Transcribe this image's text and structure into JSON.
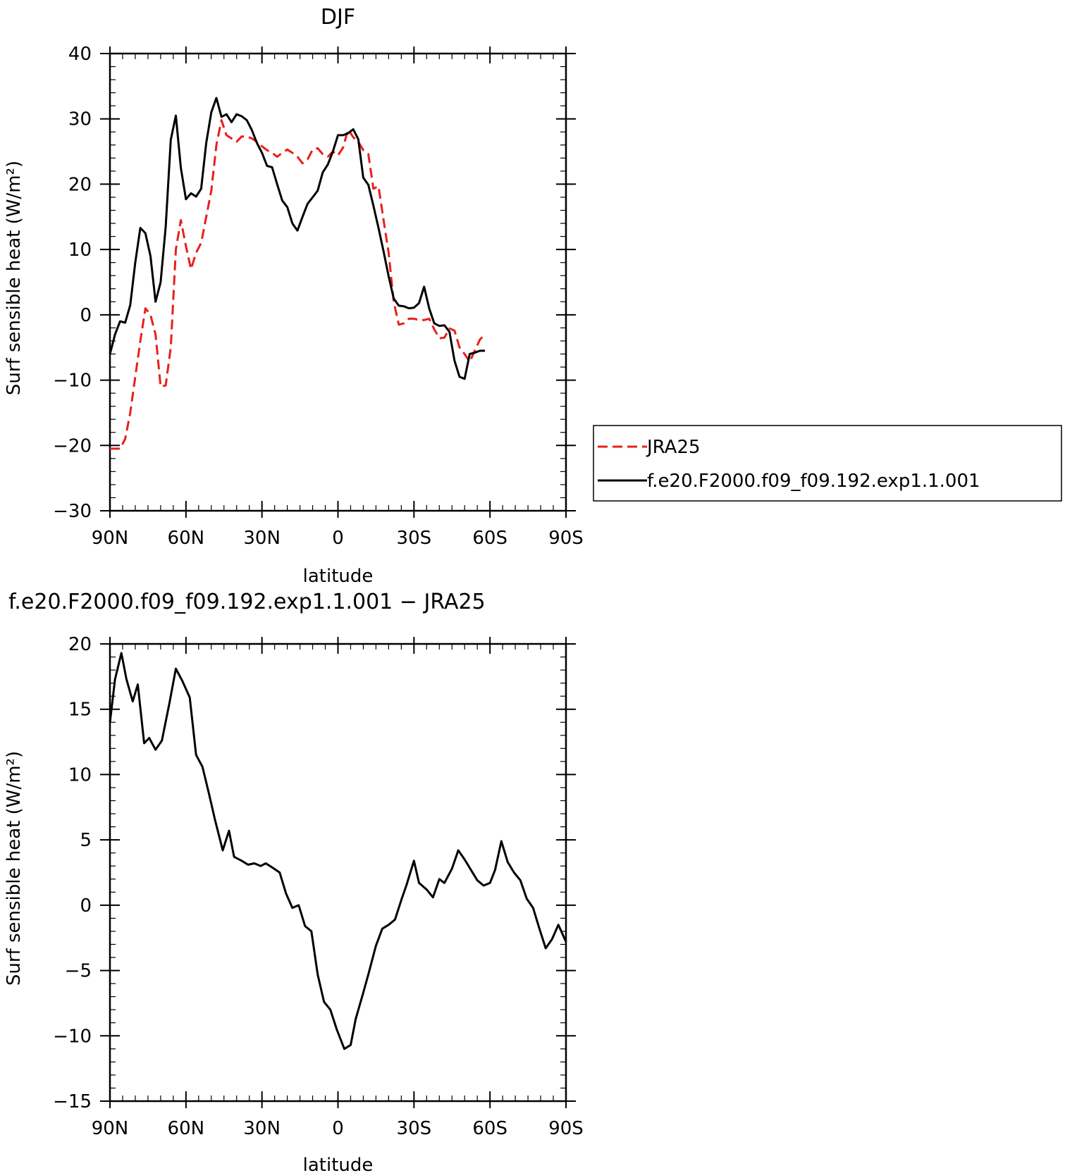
{
  "chart_data": [
    {
      "type": "line",
      "title": "DJF",
      "xlabel": "latitude",
      "ylabel": "Surf sensible heat (W/m²)",
      "xlim": [
        90,
        -90
      ],
      "ylim": [
        -30,
        40
      ],
      "xticks": [
        90,
        60,
        30,
        0,
        -30,
        -60,
        -90
      ],
      "xtick_labels": [
        "90N",
        "60N",
        "30N",
        "0",
        "30S",
        "60S",
        "90S"
      ],
      "yticks": [
        -30,
        -20,
        -10,
        0,
        10,
        20,
        30,
        40
      ],
      "ytick_labels": [
        "−30",
        "−20",
        "−10",
        "0",
        "10",
        "20",
        "30",
        "40"
      ],
      "legend_position": "right",
      "series": [
        {
          "name": "JRA25",
          "color": "#e8201a",
          "style": "dashed",
          "points": [
            [
              90,
              -20.5
            ],
            [
              88,
              -20.5
            ],
            [
              86,
              -20.5
            ],
            [
              84,
              -19
            ],
            [
              82,
              -15
            ],
            [
              80,
              -9.5
            ],
            [
              78,
              -4
            ],
            [
              76,
              1
            ],
            [
              74,
              0
            ],
            [
              72,
              -3
            ],
            [
              70,
              -11
            ],
            [
              68,
              -10.8
            ],
            [
              66,
              -5
            ],
            [
              64,
              10
            ],
            [
              62,
              14.5
            ],
            [
              60,
              10.5
            ],
            [
              58,
              7
            ],
            [
              56,
              9.5
            ],
            [
              54,
              11
            ],
            [
              52,
              15
            ],
            [
              50,
              19
            ],
            [
              48,
              26
            ],
            [
              46,
              29.8
            ],
            [
              44,
              27.5
            ],
            [
              42,
              27
            ],
            [
              40,
              26.5
            ],
            [
              38,
              27.3
            ],
            [
              36,
              27.3
            ],
            [
              34,
              27
            ],
            [
              32,
              26.5
            ],
            [
              30,
              25.8
            ],
            [
              28,
              25.2
            ],
            [
              26,
              24.8
            ],
            [
              24,
              24.2
            ],
            [
              22,
              24.8
            ],
            [
              20,
              25.3
            ],
            [
              18,
              24.8
            ],
            [
              16,
              24.2
            ],
            [
              14,
              23.2
            ],
            [
              12,
              23.8
            ],
            [
              10,
              25.3
            ],
            [
              8,
              25.5
            ],
            [
              6,
              24.6
            ],
            [
              4,
              24.2
            ],
            [
              2,
              25
            ],
            [
              0,
              24.4
            ],
            [
              -2,
              25.6
            ],
            [
              -4,
              28.4
            ],
            [
              -6,
              27.2
            ],
            [
              -8,
              26.5
            ],
            [
              -10,
              25.2
            ],
            [
              -12,
              24.6
            ],
            [
              -14,
              19.3
            ],
            [
              -16,
              19.7
            ],
            [
              -18,
              14.5
            ],
            [
              -20,
              9.5
            ],
            [
              -22,
              2
            ],
            [
              -24,
              -1.5
            ],
            [
              -26,
              -1.3
            ],
            [
              -28,
              -0.6
            ],
            [
              -30,
              -0.6
            ],
            [
              -32,
              -0.8
            ],
            [
              -34,
              -0.8
            ],
            [
              -36,
              -0.6
            ],
            [
              -38,
              -2.2
            ],
            [
              -40,
              -3.6
            ],
            [
              -42,
              -3.5
            ],
            [
              -44,
              -2.1
            ],
            [
              -46,
              -2.4
            ],
            [
              -48,
              -5
            ],
            [
              -50,
              -6
            ],
            [
              -52,
              -7.2
            ],
            [
              -54,
              -5.5
            ],
            [
              -56,
              -3.8
            ],
            [
              -58,
              -3
            ]
          ]
        },
        {
          "name": "f.e20.F2000.f09_f09.192.exp1.1.001",
          "color": "#000000",
          "style": "solid",
          "points": [
            [
              90,
              -6
            ],
            [
              88,
              -3
            ],
            [
              86,
              -1
            ],
            [
              84,
              -1.2
            ],
            [
              82,
              1.5
            ],
            [
              80,
              8
            ],
            [
              78,
              13.3
            ],
            [
              76,
              12.5
            ],
            [
              74,
              9
            ],
            [
              72,
              2
            ],
            [
              70,
              5
            ],
            [
              68,
              13.5
            ],
            [
              66,
              26.8
            ],
            [
              64,
              30.5
            ],
            [
              62,
              22.5
            ],
            [
              60,
              17.7
            ],
            [
              58,
              18.6
            ],
            [
              56,
              18.1
            ],
            [
              54,
              19.3
            ],
            [
              52,
              26.3
            ],
            [
              50,
              31
            ],
            [
              48,
              33.2
            ],
            [
              46,
              30.3
            ],
            [
              44,
              30.7
            ],
            [
              42,
              29.5
            ],
            [
              40,
              30.7
            ],
            [
              38,
              30.4
            ],
            [
              36,
              29.8
            ],
            [
              34,
              28.3
            ],
            [
              32,
              26.3
            ],
            [
              30,
              24.8
            ],
            [
              28,
              22.8
            ],
            [
              26,
              22.6
            ],
            [
              24,
              20
            ],
            [
              22,
              17.5
            ],
            [
              20,
              16.5
            ],
            [
              18,
              14
            ],
            [
              16,
              12.9
            ],
            [
              14,
              15
            ],
            [
              12,
              17
            ],
            [
              10,
              18
            ],
            [
              8,
              19
            ],
            [
              6,
              21.8
            ],
            [
              4,
              23
            ],
            [
              2,
              25
            ],
            [
              0,
              27.5
            ],
            [
              -2,
              27.5
            ],
            [
              -4,
              27.8
            ],
            [
              -6,
              28.4
            ],
            [
              -8,
              26.9
            ],
            [
              -10,
              21
            ],
            [
              -12,
              19.9
            ],
            [
              -14,
              16.7
            ],
            [
              -16,
              13.3
            ],
            [
              -18,
              9.7
            ],
            [
              -20,
              5.9
            ],
            [
              -22,
              2.5
            ],
            [
              -24,
              1.4
            ],
            [
              -26,
              1.3
            ],
            [
              -28,
              1
            ],
            [
              -30,
              1.1
            ],
            [
              -32,
              1.8
            ],
            [
              -34,
              4.3
            ],
            [
              -36,
              1
            ],
            [
              -38,
              -1.3
            ],
            [
              -40,
              -1.7
            ],
            [
              -42,
              -1.6
            ],
            [
              -44,
              -2.6
            ],
            [
              -46,
              -7
            ],
            [
              -48,
              -9.5
            ],
            [
              -50,
              -9.8
            ],
            [
              -52,
              -6
            ],
            [
              -54,
              -5.8
            ],
            [
              -56,
              -5.5
            ],
            [
              -58,
              -5.5
            ]
          ]
        }
      ]
    },
    {
      "type": "line",
      "title": "f.e20.F2000.f09_f09.192.exp1.1.001 − JRA25",
      "xlabel": "latitude",
      "ylabel": "Surf sensible heat (W/m²)",
      "xlim": [
        90,
        -90
      ],
      "ylim": [
        -15,
        20
      ],
      "xticks": [
        90,
        60,
        30,
        0,
        -30,
        -60,
        -90
      ],
      "xtick_labels": [
        "90N",
        "60N",
        "30N",
        "0",
        "30S",
        "60S",
        "90S"
      ],
      "yticks": [
        -15,
        -10,
        -5,
        0,
        5,
        10,
        15,
        20
      ],
      "ytick_labels": [
        "−15",
        "−10",
        "−5",
        "0",
        "5",
        "10",
        "15",
        "20"
      ],
      "series": [
        {
          "color": "#000000",
          "style": "solid",
          "points": [
            [
              90,
              14
            ],
            [
              88,
              17.3
            ],
            [
              85.5,
              19.3
            ],
            [
              83.5,
              17.3
            ],
            [
              81,
              15.6
            ],
            [
              79,
              16.9
            ],
            [
              76.5,
              12.4
            ],
            [
              74.5,
              12.8
            ],
            [
              72,
              11.9
            ],
            [
              69.5,
              12.6
            ],
            [
              66.5,
              15.5
            ],
            [
              64,
              18.1
            ],
            [
              61.5,
              17.2
            ],
            [
              58.5,
              15.9
            ],
            [
              56,
              11.5
            ],
            [
              53.5,
              10.6
            ],
            [
              51,
              8.6
            ],
            [
              48.5,
              6.5
            ],
            [
              45.5,
              4.2
            ],
            [
              43,
              5.7
            ],
            [
              41,
              3.7
            ],
            [
              38,
              3.4
            ],
            [
              35.5,
              3.1
            ],
            [
              33,
              3.2
            ],
            [
              30.5,
              3
            ],
            [
              28.5,
              3.2
            ],
            [
              26,
              2.9
            ],
            [
              23,
              2.5
            ],
            [
              20.5,
              0.9
            ],
            [
              18,
              -0.2
            ],
            [
              15.5,
              0
            ],
            [
              13,
              -1.6
            ],
            [
              10.5,
              -2
            ],
            [
              8,
              -5.3
            ],
            [
              5.5,
              -7.4
            ],
            [
              3,
              -8
            ],
            [
              0.5,
              -9.5
            ],
            [
              -2.5,
              -11
            ],
            [
              -5,
              -10.7
            ],
            [
              -7,
              -8.7
            ],
            [
              -10,
              -6.7
            ],
            [
              -12,
              -5.3
            ],
            [
              -15,
              -3.1
            ],
            [
              -17.5,
              -1.8
            ],
            [
              -20,
              -1.5
            ],
            [
              -22.5,
              -1.1
            ],
            [
              -25,
              0.4
            ],
            [
              -27,
              1.5
            ],
            [
              -30,
              3.4
            ],
            [
              -32,
              1.7
            ],
            [
              -35,
              1.2
            ],
            [
              -37.5,
              0.6
            ],
            [
              -40,
              2
            ],
            [
              -42,
              1.7
            ],
            [
              -45,
              2.8
            ],
            [
              -47.5,
              4.2
            ],
            [
              -50,
              3.5
            ],
            [
              -52.5,
              2.7
            ],
            [
              -55,
              1.9
            ],
            [
              -57.5,
              1.5
            ],
            [
              -60,
              1.7
            ],
            [
              -62,
              2.7
            ],
            [
              -64.5,
              4.9
            ],
            [
              -67,
              3.3
            ],
            [
              -69.5,
              2.5
            ],
            [
              -72,
              1.9
            ],
            [
              -74.5,
              0.5
            ],
            [
              -77,
              -0.2
            ],
            [
              -79.5,
              -1.8
            ],
            [
              -82,
              -3.3
            ],
            [
              -84.5,
              -2.6
            ],
            [
              -87,
              -1.5
            ],
            [
              -90,
              -2.8
            ]
          ]
        }
      ]
    }
  ]
}
